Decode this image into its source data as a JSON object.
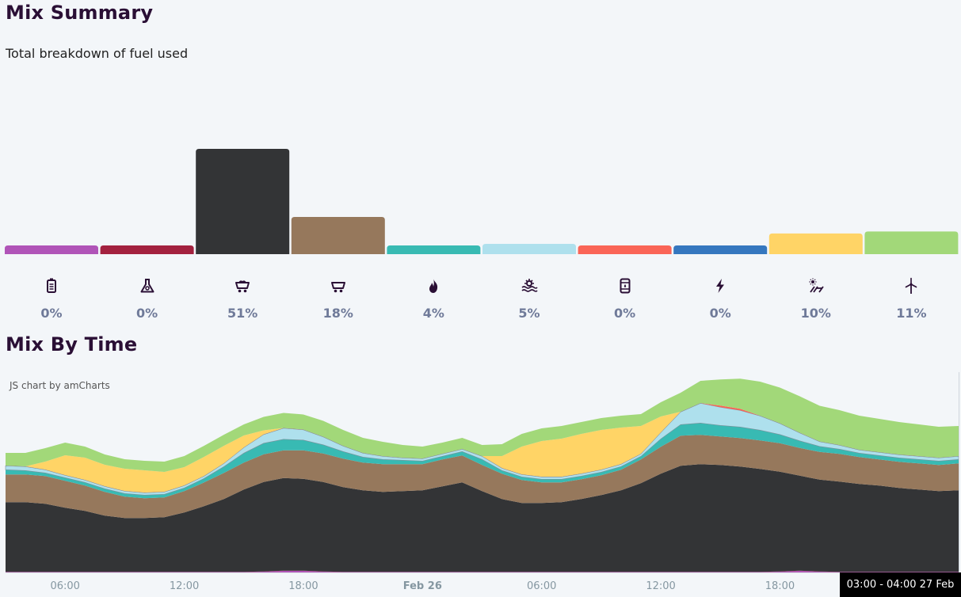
{
  "summary": {
    "title": "Mix Summary",
    "subtitle": "Total breakdown of fuel used"
  },
  "time": {
    "title": "Mix By Time",
    "credit": "JS chart by amCharts",
    "tooltip": "03:00 - 04:00 27 Feb"
  },
  "fuel_icons": [
    "battery-icon",
    "flask-icon",
    "coal-cart-icon",
    "cart-icon",
    "flame-icon",
    "hydro-wave-icon",
    "oil-barrel-icon",
    "bolt-icon",
    "solar-icon",
    "wind-turbine-icon"
  ],
  "chart_data": [
    {
      "type": "bar",
      "categories": [
        "",
        "",
        "",
        "",
        "",
        "",
        "",
        "",
        "",
        ""
      ],
      "values": [
        0.4,
        0.4,
        51,
        18,
        4,
        5,
        0.4,
        0.4,
        10,
        11
      ],
      "labels": [
        "0%",
        "0%",
        "51%",
        "18%",
        "4%",
        "5%",
        "0%",
        "0%",
        "10%",
        "11%"
      ],
      "colors": [
        "#b054b8",
        "#a3213f",
        "#333436",
        "#96785c",
        "#38bab3",
        "#aee0ed",
        "#fa6557",
        "#3577bf",
        "#ffd466",
        "#a2d879"
      ],
      "title": "Mix Summary",
      "ylim": [
        0,
        55
      ],
      "grid": false
    },
    {
      "type": "area",
      "stacked": true,
      "title": "Mix By Time",
      "x_tick_labels": [
        "06:00",
        "12:00",
        "18:00",
        "Feb 26",
        "06:00",
        "12:00",
        "18:00"
      ],
      "x": [
        3,
        4,
        5,
        6,
        7,
        8,
        9,
        10,
        11,
        12,
        13,
        14,
        15,
        16,
        17,
        18,
        19,
        20,
        21,
        22,
        23,
        24,
        25,
        26,
        27,
        28,
        29,
        30,
        31,
        32,
        33,
        34,
        35,
        36,
        37,
        38,
        39,
        40,
        41,
        42,
        43,
        44,
        45,
        46,
        47,
        48,
        49,
        50,
        51
      ],
      "ylim": [
        0,
        240
      ],
      "grid": false,
      "series": [
        {
          "color": "#b054b8",
          "values": [
            0.5,
            0.5,
            0.5,
            0.5,
            0.5,
            0.5,
            0.5,
            0.5,
            0.5,
            0.5,
            0.5,
            0.5,
            0.5,
            1,
            2,
            2,
            1,
            0.5,
            0.5,
            0.5,
            0.5,
            0.5,
            0.5,
            0.5,
            0.5,
            0.5,
            0.5,
            0.5,
            0.5,
            0.5,
            0.5,
            0.5,
            0.5,
            0.5,
            0.5,
            0.5,
            0.5,
            0.5,
            0.5,
            1,
            2,
            1,
            0.5,
            0.5,
            0.5,
            0.5,
            0.5,
            0.5,
            0.5
          ]
        },
        {
          "color": "#a3213f",
          "values": [
            0.2,
            0.2,
            0.2,
            0.2,
            0.2,
            0.2,
            0.2,
            0.2,
            0.2,
            0.2,
            0.2,
            0.2,
            0.2,
            0.2,
            0.2,
            0.2,
            0.2,
            0.2,
            0.2,
            0.2,
            0.2,
            0.2,
            0.2,
            0.2,
            0.2,
            0.2,
            0.2,
            0.2,
            0.2,
            0.2,
            0.2,
            0.2,
            0.2,
            0.2,
            0.2,
            0.2,
            0.2,
            0.2,
            0.2,
            0.2,
            0.2,
            0.2,
            0.2,
            0.2,
            0.2,
            0.2,
            0.2,
            0.2,
            0.2
          ]
        },
        {
          "color": "#333436",
          "values": [
            88,
            88,
            86,
            81,
            77,
            71,
            68,
            68,
            69,
            75,
            83,
            92,
            104,
            113,
            117,
            116,
            113,
            107,
            103,
            101,
            102,
            103,
            108,
            113,
            102,
            92,
            87,
            87,
            88,
            92,
            97,
            103,
            112,
            124,
            134,
            136,
            135,
            133,
            130,
            126,
            120,
            116,
            114,
            111,
            109,
            106,
            104,
            102,
            103
          ]
        },
        {
          "color": "#96785c",
          "values": [
            35,
            35,
            35,
            34,
            32,
            30,
            27,
            25,
            25,
            27,
            30,
            33,
            34,
            35,
            35,
            36,
            36,
            36,
            35,
            35,
            34,
            33,
            34,
            34,
            33,
            32,
            29,
            26,
            25,
            25,
            25,
            26,
            30,
            34,
            38,
            37,
            36,
            36,
            36,
            36,
            35,
            35,
            35,
            34,
            33,
            33,
            33,
            33,
            34
          ]
        },
        {
          "color": "#38bab3",
          "values": [
            6,
            5,
            4,
            4,
            4,
            4,
            4,
            4,
            4,
            4,
            5,
            8,
            12,
            14,
            14,
            13,
            11,
            9,
            7,
            6,
            5,
            4,
            4,
            5,
            7,
            4,
            4,
            4,
            4,
            4,
            4,
            4,
            4,
            10,
            14,
            15,
            14,
            14,
            13,
            11,
            9,
            7,
            6,
            5,
            5,
            5,
            5,
            5,
            5
          ]
        },
        {
          "color": "#aee0ed",
          "values": [
            5,
            5,
            4,
            3,
            3,
            3,
            3,
            3,
            3,
            3,
            3,
            4,
            7,
            11,
            14,
            13,
            10,
            7,
            5,
            4,
            3,
            3,
            3,
            3,
            4,
            3,
            3,
            3,
            3,
            3,
            3,
            3,
            3,
            8,
            16,
            25,
            23,
            21,
            18,
            14,
            10,
            6,
            5,
            4,
            4,
            4,
            4,
            4,
            4
          ]
        },
        {
          "color": "#fa6557",
          "values": [
            0.2,
            0.2,
            0.2,
            0.2,
            0.2,
            0.2,
            0.2,
            0.2,
            0.2,
            0.2,
            0.2,
            0.2,
            0.2,
            0.2,
            0.2,
            0.2,
            0.2,
            0.2,
            0.2,
            0.2,
            0.2,
            0.2,
            0.2,
            0.2,
            0.2,
            0.2,
            0.2,
            0.2,
            0.2,
            0.2,
            0.2,
            0.2,
            0.2,
            0.2,
            0.2,
            0.2,
            2,
            2,
            0.2,
            0.2,
            0.2,
            0.2,
            0.2,
            0.2,
            0.2,
            0.2,
            0.2,
            0.2,
            0.2
          ]
        },
        {
          "color": "#3577bf",
          "values": [
            0.1,
            0.1,
            0.1,
            0.1,
            0.1,
            0.1,
            0.1,
            0.1,
            0.1,
            0.1,
            0.1,
            0.1,
            0.1,
            0.1,
            0.1,
            0.1,
            0.1,
            0.1,
            0.1,
            0.1,
            0.1,
            0.1,
            0.1,
            0.1,
            0.1,
            0.1,
            0.1,
            0.1,
            0.1,
            0.1,
            0.1,
            0.1,
            0.1,
            0.1,
            0.1,
            0.1,
            0.1,
            0.1,
            0.1,
            0.1,
            0.1,
            0.1,
            0.1,
            0.1,
            0.1,
            0.1,
            0.1,
            0.1,
            0.1
          ]
        },
        {
          "color": "#ffd466",
          "values": [
            0,
            0,
            10,
            25,
            28,
            27,
            28,
            28,
            25,
            23,
            24,
            22,
            15,
            5,
            0,
            0,
            0,
            0,
            0,
            0,
            0,
            0,
            0,
            0,
            0,
            15,
            35,
            45,
            48,
            50,
            50,
            46,
            35,
            20,
            0,
            0,
            0,
            0,
            0,
            0,
            0,
            0,
            0,
            0,
            0,
            0,
            0,
            0,
            0
          ]
        },
        {
          "color": "#a2d879",
          "values": [
            16,
            17,
            17,
            16,
            14,
            13,
            12,
            12,
            13,
            14,
            14,
            14,
            14,
            17,
            19,
            19,
            20,
            20,
            19,
            18,
            16,
            15,
            14,
            14,
            14,
            15,
            16,
            16,
            16,
            15,
            15,
            15,
            15,
            18,
            24,
            28,
            33,
            38,
            43,
            45,
            46,
            45,
            44,
            43,
            42,
            41,
            40,
            39,
            38
          ]
        }
      ]
    }
  ]
}
